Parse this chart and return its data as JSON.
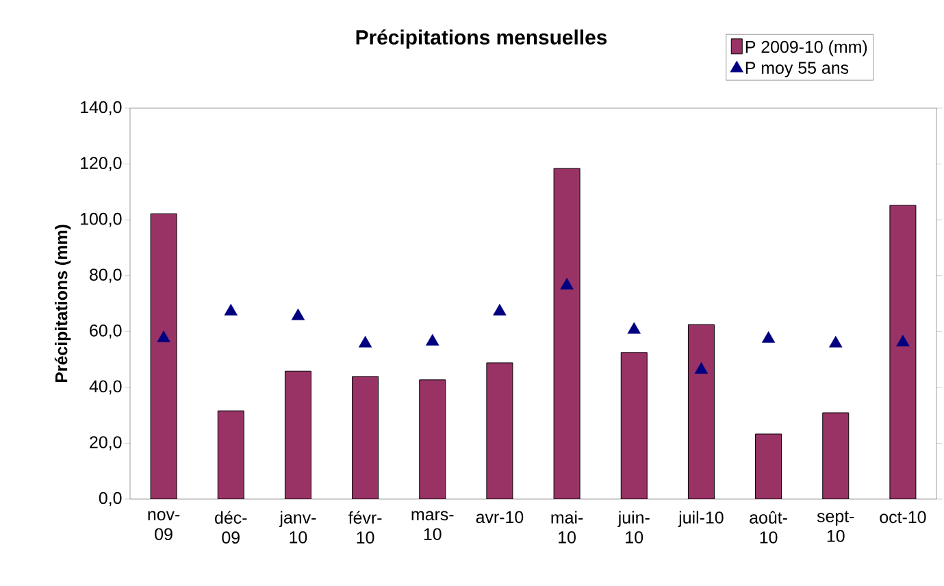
{
  "chart_data": {
    "type": "bar",
    "title": "Précipitations mensuelles",
    "ylabel": "Précipitations (mm)",
    "categories": [
      "nov-09",
      "déc-09",
      "janv-10",
      "févr-10",
      "mars-10",
      "avr-10",
      "mai-10",
      "juin-10",
      "juil-10",
      "août-10",
      "sept-10",
      "oct-10"
    ],
    "series": [
      {
        "name": "P  2009-10 (mm)",
        "color": "#993366",
        "values": [
          102.2,
          31.6,
          45.8,
          43.9,
          42.7,
          48.8,
          118.4,
          52.5,
          62.5,
          23.3,
          30.9,
          105.2
        ]
      },
      {
        "name": "P moy 55 ans",
        "type": "scatter",
        "marker": "triangle",
        "color": "#000080",
        "values": [
          57.6,
          67.2,
          65.5,
          55.7,
          56.4,
          67.2,
          76.5,
          60.6,
          46.3,
          57.4,
          55.7,
          56.1
        ]
      }
    ],
    "ylim": [
      0,
      140
    ],
    "yticks": [
      {
        "value": 0,
        "label": "0,0"
      },
      {
        "value": 20,
        "label": "20,0"
      },
      {
        "value": 40,
        "label": "40,0"
      },
      {
        "value": 60,
        "label": "60,0"
      },
      {
        "value": 80,
        "label": "80,0"
      },
      {
        "value": 100,
        "label": "100,0"
      },
      {
        "value": 120,
        "label": "120,0"
      },
      {
        "value": 140,
        "label": "140,0"
      }
    ],
    "grid": false,
    "legend": "top right"
  }
}
